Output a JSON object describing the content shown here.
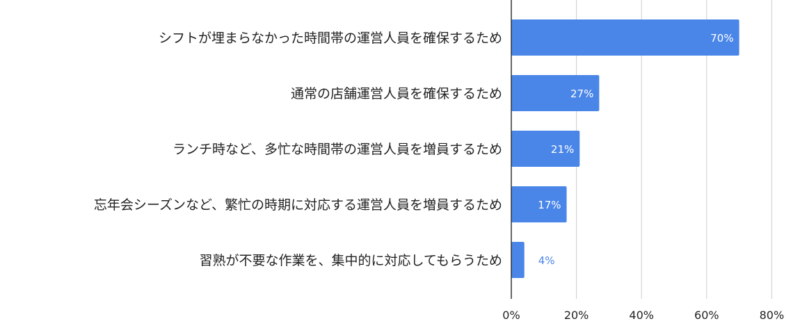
{
  "chart_data": {
    "type": "bar",
    "orientation": "horizontal",
    "categories": [
      "シフトが埋まらなかった時間帯の運営人員を確保するため",
      "通常の店舗運営人員を確保するため",
      "ランチ時など、多忙な時間帯の運営人員を増員するため",
      "忘年会シーズンなど、繁忙の時期に対応する運営人員を増員するため",
      "習熟が不要な作業を、集中的に対応してもらうため"
    ],
    "values": [
      70,
      27,
      21,
      17,
      4
    ],
    "data_labels": [
      "70%",
      "27%",
      "21%",
      "17%",
      "4%"
    ],
    "xlim": [
      0,
      80
    ],
    "x_ticks": [
      0,
      20,
      40,
      60,
      80
    ],
    "x_tick_labels": [
      "0%",
      "20%",
      "40%",
      "60%",
      "80%"
    ],
    "grid": true,
    "bar_color": "#4a86e8",
    "label_color_inside": "#ffffff",
    "label_color_outside": "#4a86e8",
    "text_color": "#222222",
    "grid_color": "#cccccc"
  }
}
